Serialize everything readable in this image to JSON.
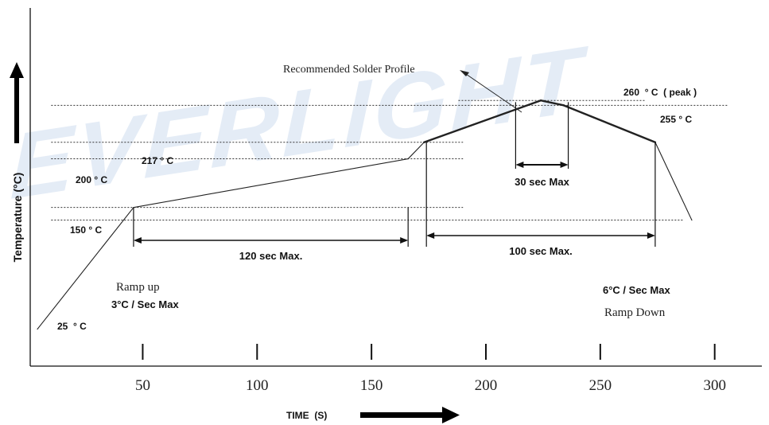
{
  "chart_data": {
    "type": "line",
    "title": "",
    "xlabel": "TIME  (S)",
    "ylabel": "Temperature (°C)",
    "xlim": [
      4,
      312
    ],
    "ylim": [
      0,
      300
    ],
    "x_ticks": [
      50,
      100,
      150,
      200,
      250,
      300
    ],
    "x_tick_labels": [
      "50",
      "100",
      "150",
      "200",
      "250",
      "300"
    ],
    "grid": false,
    "watermark": "EVERLIGHT",
    "colors": {
      "line": "#222222",
      "watermark": "#e4ecf6",
      "axis": "#111111"
    },
    "series": [
      {
        "name": "Recommended Solder Profile",
        "points": [
          {
            "x": 4,
            "y": 25
          },
          {
            "x": 46,
            "y": 150
          },
          {
            "x": 166,
            "y": 200
          },
          {
            "x": 173,
            "y": 217
          },
          {
            "x": 224,
            "y": 260
          },
          {
            "x": 234,
            "y": 255
          },
          {
            "x": 274,
            "y": 217
          },
          {
            "x": 290,
            "y": 137
          }
        ]
      }
    ],
    "reference_lines": [
      {
        "y": 260,
        "x": [
          188,
          270
        ]
      },
      {
        "y": 255,
        "x": [
          10,
          306
        ]
      },
      {
        "y": 217,
        "x": [
          10,
          190
        ]
      },
      {
        "y": 200,
        "x": [
          10,
          190
        ]
      },
      {
        "y": 150,
        "x": [
          10,
          190
        ]
      },
      {
        "y": 137,
        "x": [
          10,
          286
        ]
      }
    ],
    "intervals": [
      {
        "label": "120 sec Max.",
        "x_start": 46,
        "x_end": 166
      },
      {
        "label": "100 sec Max.",
        "x_start": 174,
        "x_end": 274
      },
      {
        "label": "30 sec Max",
        "x_start": 213,
        "x_end": 236
      }
    ],
    "temperature_labels": [
      {
        "text": "260  ° C  ( peak )"
      },
      {
        "text": "255 ° C"
      },
      {
        "text": "217 ° C"
      },
      {
        "text": "200 ° C"
      },
      {
        "text": "150 ° C"
      },
      {
        "text": "25  ° C"
      }
    ],
    "annotations": {
      "profile_label": "Recommended Solder Profile",
      "ramp_up_title": "Ramp up",
      "ramp_up_rate": "3°C / Sec Max",
      "ramp_down_rate": "6°C / Sec Max",
      "ramp_down_title": "Ramp Down"
    }
  }
}
